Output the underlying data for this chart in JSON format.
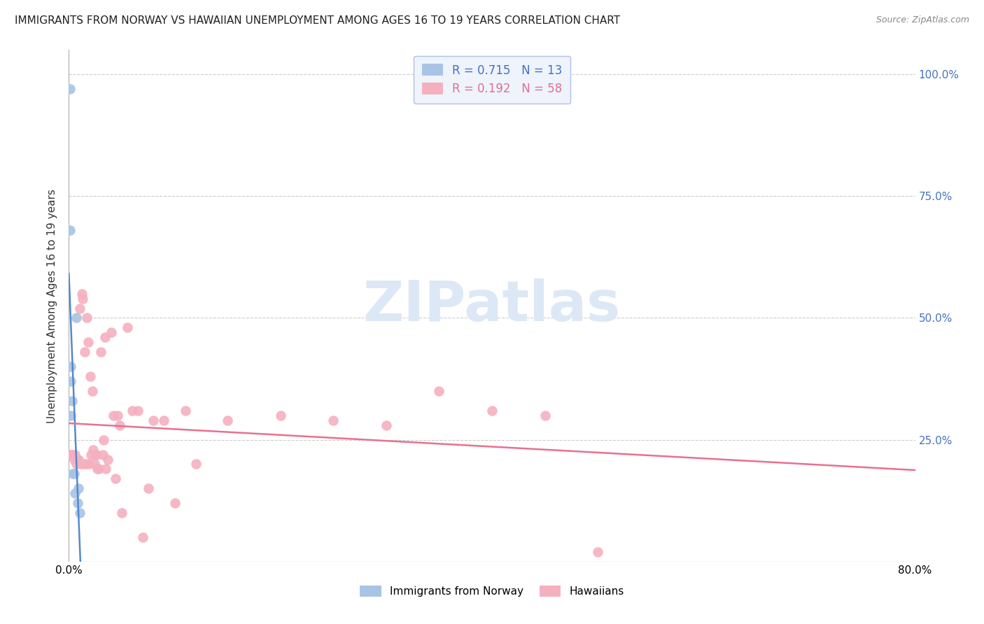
{
  "title": "IMMIGRANTS FROM NORWAY VS HAWAIIAN UNEMPLOYMENT AMONG AGES 16 TO 19 YEARS CORRELATION CHART",
  "source": "Source: ZipAtlas.com",
  "ylabel": "Unemployment Among Ages 16 to 19 years",
  "norway_scatter_x": [
    0.001,
    0.001,
    0.002,
    0.002,
    0.002,
    0.003,
    0.004,
    0.005,
    0.006,
    0.007,
    0.008,
    0.009,
    0.01
  ],
  "norway_scatter_y": [
    0.97,
    0.68,
    0.4,
    0.37,
    0.3,
    0.33,
    0.18,
    0.18,
    0.14,
    0.5,
    0.12,
    0.15,
    0.1
  ],
  "hawaii_scatter_x": [
    0.001,
    0.002,
    0.003,
    0.004,
    0.005,
    0.006,
    0.007,
    0.008,
    0.009,
    0.01,
    0.011,
    0.012,
    0.013,
    0.014,
    0.015,
    0.016,
    0.017,
    0.018,
    0.019,
    0.02,
    0.021,
    0.022,
    0.023,
    0.024,
    0.025,
    0.026,
    0.027,
    0.028,
    0.03,
    0.032,
    0.033,
    0.034,
    0.035,
    0.037,
    0.04,
    0.042,
    0.044,
    0.046,
    0.048,
    0.05,
    0.055,
    0.06,
    0.065,
    0.07,
    0.075,
    0.08,
    0.09,
    0.1,
    0.11,
    0.12,
    0.15,
    0.2,
    0.25,
    0.3,
    0.35,
    0.4,
    0.45,
    0.5
  ],
  "hawaii_scatter_y": [
    0.22,
    0.22,
    0.22,
    0.22,
    0.21,
    0.22,
    0.2,
    0.21,
    0.21,
    0.52,
    0.2,
    0.55,
    0.54,
    0.2,
    0.43,
    0.2,
    0.5,
    0.45,
    0.2,
    0.38,
    0.22,
    0.35,
    0.23,
    0.2,
    0.22,
    0.22,
    0.19,
    0.19,
    0.43,
    0.22,
    0.25,
    0.46,
    0.19,
    0.21,
    0.47,
    0.3,
    0.17,
    0.3,
    0.28,
    0.1,
    0.48,
    0.31,
    0.31,
    0.05,
    0.15,
    0.29,
    0.29,
    0.12,
    0.31,
    0.2,
    0.29,
    0.3,
    0.29,
    0.28,
    0.35,
    0.31,
    0.3,
    0.02
  ],
  "norway_R": 0.715,
  "norway_N": 13,
  "hawaii_R": 0.192,
  "hawaii_N": 58,
  "norway_scatter_color": "#a8c4e5",
  "hawaii_scatter_color": "#f5b0c0",
  "norway_line_color": "#5588cc",
  "hawaii_line_color": "#e87090",
  "xlim": [
    0.0,
    0.8
  ],
  "ylim": [
    0.0,
    1.05
  ],
  "yticks": [
    0.0,
    0.25,
    0.5,
    0.75,
    1.0
  ],
  "ytick_labels_right": [
    "",
    "25.0%",
    "50.0%",
    "75.0%",
    "100.0%"
  ],
  "xticks": [
    0.0,
    0.1,
    0.2,
    0.3,
    0.4,
    0.5,
    0.6,
    0.7,
    0.8
  ],
  "xtick_labels": [
    "0.0%",
    "",
    "",
    "",
    "",
    "",
    "",
    "",
    "80.0%"
  ],
  "background_color": "#ffffff",
  "watermark_text": "ZIPatlas",
  "watermark_color": "#dce8f5",
  "grid_color": "#cccccc",
  "legend_facecolor": "#eef3fc",
  "legend_edgecolor": "#b0c0e0",
  "norway_legend_label": "R = 0.715   N = 13",
  "hawaii_legend_label": "R = 0.192   N = 58",
  "bottom_legend_norway": "Immigrants from Norway",
  "bottom_legend_hawaii": "Hawaiians",
  "title_fontsize": 11,
  "source_fontsize": 9,
  "tick_fontsize": 11,
  "ylabel_fontsize": 11
}
